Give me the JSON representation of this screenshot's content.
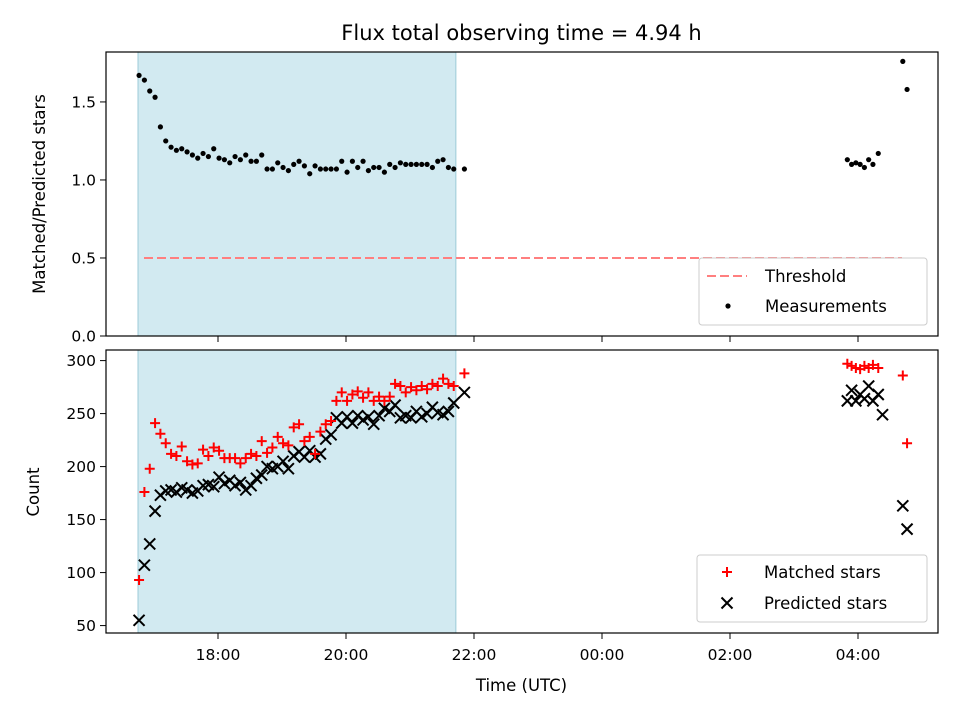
{
  "chart_data": {
    "title": "Flux total observing time = 4.94 h",
    "observed_window": {
      "start": "16:45",
      "end": "21:43",
      "color": "#add8e6"
    },
    "x_axis": {
      "label": "Time (UTC)",
      "range": [
        "16:15",
        "05:15"
      ],
      "ticks": [
        "18:00",
        "20:00",
        "22:00",
        "00:00",
        "02:00",
        "04:00"
      ]
    },
    "top": {
      "type": "scatter",
      "ylabel": "Matched/Predicted stars",
      "ylim": [
        0,
        1.82
      ],
      "yticks": [
        "0.0",
        "0.5",
        "1.0",
        "1.5"
      ],
      "legend_position": "lower right",
      "threshold": {
        "name": "Threshold",
        "value": 0.5,
        "color": "#ff0000",
        "style": "dashed"
      },
      "series": [
        {
          "name": "Measurements",
          "color": "#000000",
          "marker": "dot",
          "points": [
            [
              "16:46",
              1.67
            ],
            [
              "16:51",
              1.64
            ],
            [
              "16:56",
              1.57
            ],
            [
              "17:01",
              1.53
            ],
            [
              "17:06",
              1.34
            ],
            [
              "17:11",
              1.25
            ],
            [
              "17:16",
              1.21
            ],
            [
              "17:21",
              1.19
            ],
            [
              "17:26",
              1.2
            ],
            [
              "17:31",
              1.18
            ],
            [
              "17:36",
              1.16
            ],
            [
              "17:41",
              1.14
            ],
            [
              "17:46",
              1.17
            ],
            [
              "17:51",
              1.15
            ],
            [
              "17:56",
              1.2
            ],
            [
              "18:01",
              1.14
            ],
            [
              "18:06",
              1.13
            ],
            [
              "18:11",
              1.11
            ],
            [
              "18:16",
              1.15
            ],
            [
              "18:21",
              1.13
            ],
            [
              "18:26",
              1.16
            ],
            [
              "18:31",
              1.12
            ],
            [
              "18:36",
              1.12
            ],
            [
              "18:41",
              1.16
            ],
            [
              "18:46",
              1.07
            ],
            [
              "18:51",
              1.07
            ],
            [
              "18:56",
              1.11
            ],
            [
              "19:01",
              1.08
            ],
            [
              "19:06",
              1.06
            ],
            [
              "19:11",
              1.1
            ],
            [
              "19:16",
              1.12
            ],
            [
              "19:21",
              1.09
            ],
            [
              "19:26",
              1.04
            ],
            [
              "19:31",
              1.09
            ],
            [
              "19:36",
              1.07
            ],
            [
              "19:41",
              1.07
            ],
            [
              "19:46",
              1.07
            ],
            [
              "19:51",
              1.07
            ],
            [
              "19:56",
              1.12
            ],
            [
              "20:01",
              1.05
            ],
            [
              "20:06",
              1.12
            ],
            [
              "20:11",
              1.08
            ],
            [
              "20:16",
              1.12
            ],
            [
              "20:21",
              1.06
            ],
            [
              "20:26",
              1.08
            ],
            [
              "20:31",
              1.08
            ],
            [
              "20:36",
              1.05
            ],
            [
              "20:41",
              1.1
            ],
            [
              "20:46",
              1.08
            ],
            [
              "20:51",
              1.11
            ],
            [
              "20:56",
              1.1
            ],
            [
              "21:01",
              1.1
            ],
            [
              "21:06",
              1.1
            ],
            [
              "21:11",
              1.1
            ],
            [
              "21:16",
              1.1
            ],
            [
              "21:21",
              1.08
            ],
            [
              "21:26",
              1.12
            ],
            [
              "21:31",
              1.13
            ],
            [
              "21:36",
              1.08
            ],
            [
              "21:41",
              1.07
            ],
            [
              "21:51",
              1.07
            ],
            [
              "03:50",
              1.13
            ],
            [
              "03:54",
              1.1
            ],
            [
              "03:58",
              1.11
            ],
            [
              "04:02",
              1.1
            ],
            [
              "04:06",
              1.08
            ],
            [
              "04:10",
              1.13
            ],
            [
              "04:14",
              1.1
            ],
            [
              "04:19",
              1.17
            ],
            [
              "04:42",
              1.76
            ],
            [
              "04:46",
              1.58
            ]
          ]
        }
      ]
    },
    "bottom": {
      "type": "scatter",
      "ylabel": "Count",
      "ylim": [
        43,
        310
      ],
      "yticks": [
        "50",
        "100",
        "150",
        "200",
        "250",
        "300"
      ],
      "legend_position": "lower right",
      "series": [
        {
          "name": "Matched stars",
          "color": "#ff0000",
          "marker": "plus",
          "points": [
            [
              "16:46",
              93
            ],
            [
              "16:51",
              176
            ],
            [
              "16:56",
              198
            ],
            [
              "17:01",
              241
            ],
            [
              "17:06",
              231
            ],
            [
              "17:11",
              222
            ],
            [
              "17:16",
              212
            ],
            [
              "17:21",
              210
            ],
            [
              "17:26",
              219
            ],
            [
              "17:31",
              205
            ],
            [
              "17:36",
              202
            ],
            [
              "17:41",
              203
            ],
            [
              "17:46",
              216
            ],
            [
              "17:51",
              210
            ],
            [
              "17:56",
              218
            ],
            [
              "18:01",
              215
            ],
            [
              "18:06",
              208
            ],
            [
              "18:11",
              208
            ],
            [
              "18:16",
              208
            ],
            [
              "18:21",
              203
            ],
            [
              "18:26",
              208
            ],
            [
              "18:31",
              212
            ],
            [
              "18:36",
              210
            ],
            [
              "18:41",
              224
            ],
            [
              "18:46",
              213
            ],
            [
              "18:51",
              218
            ],
            [
              "18:56",
              228
            ],
            [
              "19:01",
              222
            ],
            [
              "19:06",
              220
            ],
            [
              "19:11",
              237
            ],
            [
              "19:16",
              240
            ],
            [
              "19:21",
              224
            ],
            [
              "19:26",
              228
            ],
            [
              "19:31",
              212
            ],
            [
              "19:36",
              233
            ],
            [
              "19:41",
              240
            ],
            [
              "19:46",
              243
            ],
            [
              "19:51",
              262
            ],
            [
              "19:56",
              270
            ],
            [
              "20:01",
              262
            ],
            [
              "20:06",
              268
            ],
            [
              "20:11",
              271
            ],
            [
              "20:16",
              265
            ],
            [
              "20:21",
              270
            ],
            [
              "20:26",
              262
            ],
            [
              "20:31",
              266
            ],
            [
              "20:36",
              262
            ],
            [
              "20:41",
              266
            ],
            [
              "20:46",
              278
            ],
            [
              "20:51",
              276
            ],
            [
              "20:56",
              270
            ],
            [
              "21:01",
              275
            ],
            [
              "21:06",
              272
            ],
            [
              "21:11",
              276
            ],
            [
              "21:16",
              273
            ],
            [
              "21:21",
              278
            ],
            [
              "21:26",
              276
            ],
            [
              "21:31",
              283
            ],
            [
              "21:36",
              278
            ],
            [
              "21:41",
              276
            ],
            [
              "21:51",
              288
            ],
            [
              "03:50",
              297
            ],
            [
              "03:54",
              295
            ],
            [
              "03:58",
              293
            ],
            [
              "04:02",
              292
            ],
            [
              "04:06",
              295
            ],
            [
              "04:10",
              293
            ],
            [
              "04:14",
              296
            ],
            [
              "04:19",
              293
            ],
            [
              "04:42",
              286
            ],
            [
              "04:46",
              222
            ]
          ]
        },
        {
          "name": "Predicted stars",
          "color": "#000000",
          "marker": "x",
          "points": [
            [
              "16:46",
              55
            ],
            [
              "16:51",
              107
            ],
            [
              "16:56",
              127
            ],
            [
              "17:01",
              158
            ],
            [
              "17:06",
              173
            ],
            [
              "17:11",
              177
            ],
            [
              "17:16",
              178
            ],
            [
              "17:21",
              176
            ],
            [
              "17:26",
              180
            ],
            [
              "17:31",
              178
            ],
            [
              "17:36",
              175
            ],
            [
              "17:41",
              177
            ],
            [
              "17:46",
              182
            ],
            [
              "17:51",
              183
            ],
            [
              "17:56",
              181
            ],
            [
              "18:01",
              190
            ],
            [
              "18:06",
              184
            ],
            [
              "18:11",
              187
            ],
            [
              "18:16",
              182
            ],
            [
              "18:21",
              185
            ],
            [
              "18:26",
              178
            ],
            [
              "18:31",
              182
            ],
            [
              "18:36",
              189
            ],
            [
              "18:41",
              192
            ],
            [
              "18:46",
              200
            ],
            [
              "18:51",
              198
            ],
            [
              "18:56",
              200
            ],
            [
              "19:01",
              205
            ],
            [
              "19:06",
              198
            ],
            [
              "19:11",
              210
            ],
            [
              "19:16",
              214
            ],
            [
              "19:21",
              209
            ],
            [
              "19:26",
              215
            ],
            [
              "19:31",
              209
            ],
            [
              "19:36",
              212
            ],
            [
              "19:41",
              226
            ],
            [
              "19:46",
              230
            ],
            [
              "19:51",
              246
            ],
            [
              "19:56",
              241
            ],
            [
              "20:01",
              247
            ],
            [
              "20:06",
              241
            ],
            [
              "20:11",
              248
            ],
            [
              "20:16",
              244
            ],
            [
              "20:21",
              247
            ],
            [
              "20:26",
              240
            ],
            [
              "20:31",
              248
            ],
            [
              "20:36",
              255
            ],
            [
              "20:41",
              252
            ],
            [
              "20:46",
              258
            ],
            [
              "20:51",
              246
            ],
            [
              "20:56",
              248
            ],
            [
              "21:01",
              246
            ],
            [
              "21:06",
              252
            ],
            [
              "21:11",
              247
            ],
            [
              "21:16",
              250
            ],
            [
              "21:21",
              256
            ],
            [
              "21:26",
              251
            ],
            [
              "21:31",
              249
            ],
            [
              "21:36",
              252
            ],
            [
              "21:41",
              260
            ],
            [
              "21:51",
              270
            ],
            [
              "03:50",
              262
            ],
            [
              "03:54",
              272
            ],
            [
              "03:58",
              262
            ],
            [
              "04:02",
              268
            ],
            [
              "04:06",
              264
            ],
            [
              "04:10",
              276
            ],
            [
              "04:14",
              262
            ],
            [
              "04:19",
              268
            ],
            [
              "04:23",
              249
            ],
            [
              "04:42",
              163
            ],
            [
              "04:46",
              141
            ]
          ]
        }
      ]
    }
  }
}
